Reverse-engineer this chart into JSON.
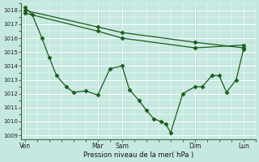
{
  "bg_color": "#c5e8e0",
  "grid_color": "#ffffff",
  "line_color": "#1a5c1a",
  "xlabel": "Pression niveau de la mer( hPa )",
  "ylim": [
    1008.7,
    1018.5
  ],
  "yticks": [
    1009,
    1010,
    1011,
    1012,
    1013,
    1014,
    1015,
    1016,
    1017,
    1018
  ],
  "xtick_positions": [
    0,
    3,
    4,
    7,
    9
  ],
  "xtick_labels": [
    "Ven",
    "Mar",
    "Sam",
    "Dim",
    "Lun"
  ],
  "vline_positions": [
    0,
    3,
    4,
    7,
    9
  ],
  "line1": {
    "x": [
      0,
      3,
      4,
      7,
      9
    ],
    "y": [
      1018.0,
      1016.8,
      1016.4,
      1015.7,
      1015.3
    ]
  },
  "line2": {
    "x": [
      0,
      3,
      4,
      7,
      9
    ],
    "y": [
      1017.8,
      1016.5,
      1016.0,
      1015.3,
      1015.5
    ]
  },
  "line3": {
    "x": [
      0,
      0.3,
      0.7,
      1.0,
      1.3,
      1.7,
      2.0,
      2.5,
      3.0,
      3.5,
      4.0,
      4.3,
      4.7,
      5.0,
      5.3,
      5.6,
      5.8,
      6.0,
      6.5,
      7.0,
      7.3,
      7.7,
      8.0,
      8.3,
      8.7,
      9.0
    ],
    "y": [
      1018.2,
      1017.7,
      1016.0,
      1014.6,
      1013.3,
      1012.5,
      1012.1,
      1012.2,
      1011.9,
      1013.8,
      1014.0,
      1012.3,
      1011.5,
      1010.8,
      1010.2,
      1010.0,
      1009.8,
      1009.2,
      1012.0,
      1012.5,
      1012.5,
      1013.3,
      1013.3,
      1012.1,
      1013.0,
      1015.2
    ]
  }
}
